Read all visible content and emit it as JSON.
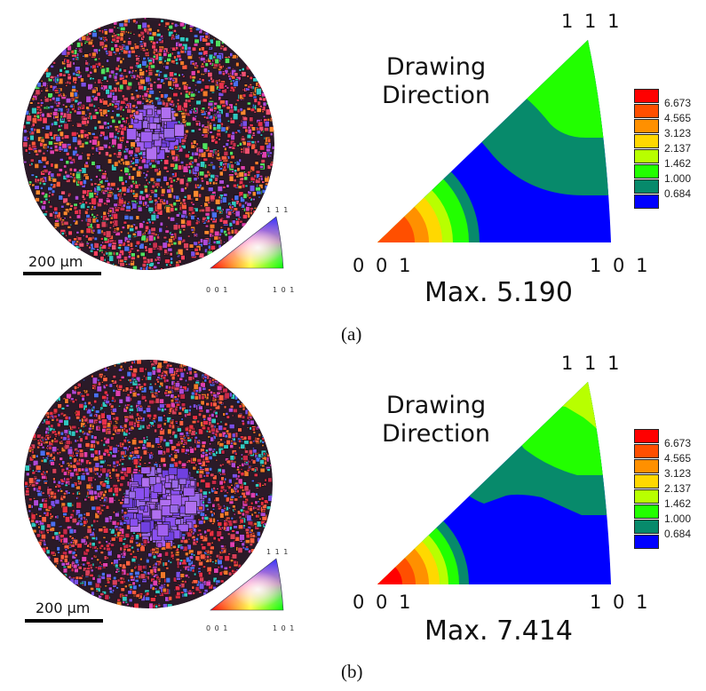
{
  "panels": [
    {
      "id": "a",
      "caption": "(a)",
      "ebsd_map": {
        "scale_bar_label": "200 μm",
        "ipf_key": {
          "corner_labels": [
            "0 0 1",
            "1 0 1",
            "1 1 1"
          ]
        }
      },
      "inverse_pole_figure": {
        "direction_label_line1": "Drawing",
        "direction_label_line2": "Direction",
        "corner_labels": {
          "bottom_left": "0 0 1",
          "bottom_right": "1 0 1",
          "top": "1 1 1"
        },
        "max_label": "Max. 5.190"
      },
      "legend": {
        "values": [
          "6.673",
          "4.565",
          "3.123",
          "2.137",
          "1.462",
          "1.000",
          "0.684"
        ]
      }
    },
    {
      "id": "b",
      "caption": "(b)",
      "ebsd_map": {
        "scale_bar_label": "200 μm",
        "ipf_key": {
          "corner_labels": [
            "0 0 1",
            "1 0 1",
            "1 1 1"
          ]
        }
      },
      "inverse_pole_figure": {
        "direction_label_line1": "Drawing",
        "direction_label_line2": "Direction",
        "corner_labels": {
          "bottom_left": "0 0 1",
          "bottom_right": "1 0 1",
          "top": "1 1 1"
        },
        "max_label": "Max. 7.414"
      },
      "legend": {
        "values": [
          "6.673",
          "4.565",
          "3.123",
          "2.137",
          "1.462",
          "1.000",
          "0.684"
        ]
      }
    }
  ],
  "colors": {
    "contour_levels": [
      "#ff0000",
      "#ff4f00",
      "#ff9000",
      "#ffd800",
      "#b8ff00",
      "#22ff00",
      "#078a6b",
      "#0000ff"
    ]
  }
}
